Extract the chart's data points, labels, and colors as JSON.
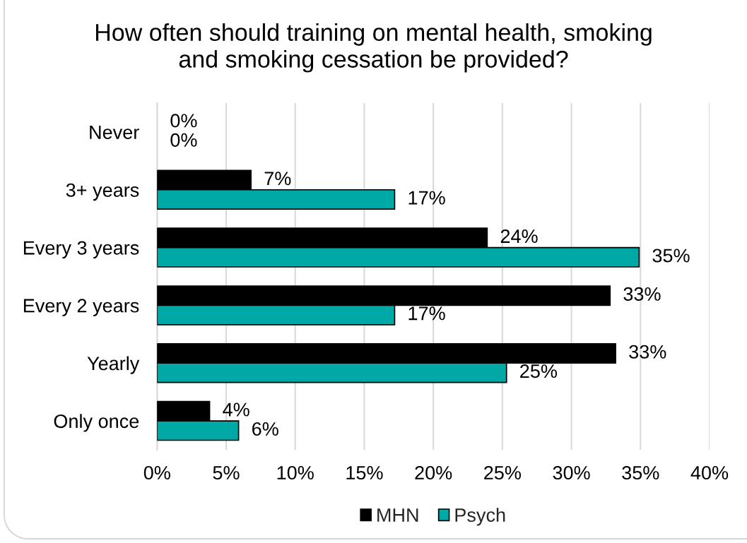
{
  "chart_data": {
    "type": "bar",
    "orientation": "horizontal",
    "title": "How often should training on mental health, smoking and smoking cessation be provided?",
    "categories": [
      "Never",
      "3+ years",
      "Every 3 years",
      "Every 2 years",
      "Yearly",
      "Only once"
    ],
    "series": [
      {
        "name": "MHN",
        "color": "#000000",
        "values": [
          0,
          6.8,
          23.9,
          32.8,
          33.2,
          3.8
        ],
        "value_labels": [
          "0%",
          "7%",
          "24%",
          "33%",
          "33%",
          "4%"
        ]
      },
      {
        "name": "Psych",
        "color": "#00a9a6",
        "values": [
          0,
          17.2,
          34.9,
          17.2,
          25.3,
          5.9
        ],
        "value_labels": [
          "0%",
          "17%",
          "35%",
          "17%",
          "25%",
          "6%"
        ]
      }
    ],
    "xlim": [
      0,
      40
    ],
    "xticks": [
      {
        "value": 0,
        "label": "0%"
      },
      {
        "value": 5,
        "label": "5%"
      },
      {
        "value": 10,
        "label": "10%"
      },
      {
        "value": 15,
        "label": "15%"
      },
      {
        "value": 20,
        "label": "20%"
      },
      {
        "value": 25,
        "label": "25%"
      },
      {
        "value": 30,
        "label": "30%"
      },
      {
        "value": 35,
        "label": "35%"
      },
      {
        "value": 40,
        "label": "40%"
      }
    ],
    "grid": "x",
    "legend": "bottom"
  }
}
